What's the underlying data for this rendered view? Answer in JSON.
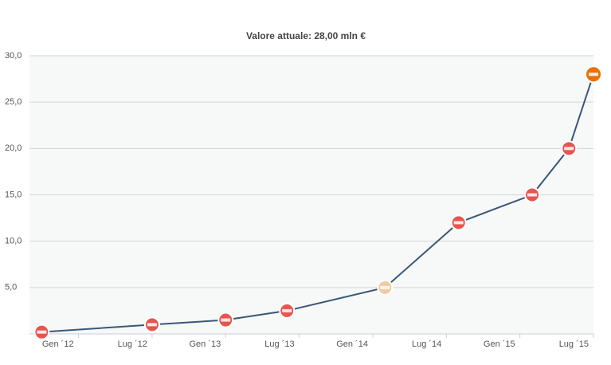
{
  "chart_data": {
    "type": "line",
    "title": "Valore attuale: 28,00 mln €",
    "x": [
      "2011-10",
      "2012-07",
      "2013-01",
      "2013-06",
      "2014-02",
      "2014-08",
      "2015-02",
      "2015-05",
      "2015-07"
    ],
    "series": [
      {
        "color": "#3a5878",
        "values": [
          0.2,
          1.0,
          1.5,
          2.5,
          5.0,
          12.0,
          15.0,
          20.0,
          28.0
        ],
        "marker_colors": [
          "#e8544e",
          "#e8544e",
          "#e8544e",
          "#e8544e",
          "#f2c9a0",
          "#e8544e",
          "#e8544e",
          "#e8544e",
          "#e8700a"
        ]
      }
    ],
    "xlim": [
      "2011-09",
      "2015-07"
    ],
    "xticks": [
      {
        "value": "2012-01",
        "label": "Gen ´12"
      },
      {
        "value": "2012-07",
        "label": "Lug ´12"
      },
      {
        "value": "2013-01",
        "label": "Gen ´13"
      },
      {
        "value": "2013-07",
        "label": "Lug ´13"
      },
      {
        "value": "2014-01",
        "label": "Gen ´14"
      },
      {
        "value": "2014-07",
        "label": "Lug ´14"
      },
      {
        "value": "2015-01",
        "label": "Gen ´15"
      },
      {
        "value": "2015-07",
        "label": "Lug ´15"
      }
    ],
    "ylim": [
      0,
      30
    ],
    "yticks": [
      {
        "value": 5,
        "label": "5,0"
      },
      {
        "value": 10,
        "label": "10,0"
      },
      {
        "value": 15,
        "label": "15,0"
      },
      {
        "value": 20,
        "label": "20,0"
      },
      {
        "value": 25,
        "label": "25,0"
      },
      {
        "value": 30,
        "label": "30,0"
      }
    ],
    "grid": true
  }
}
